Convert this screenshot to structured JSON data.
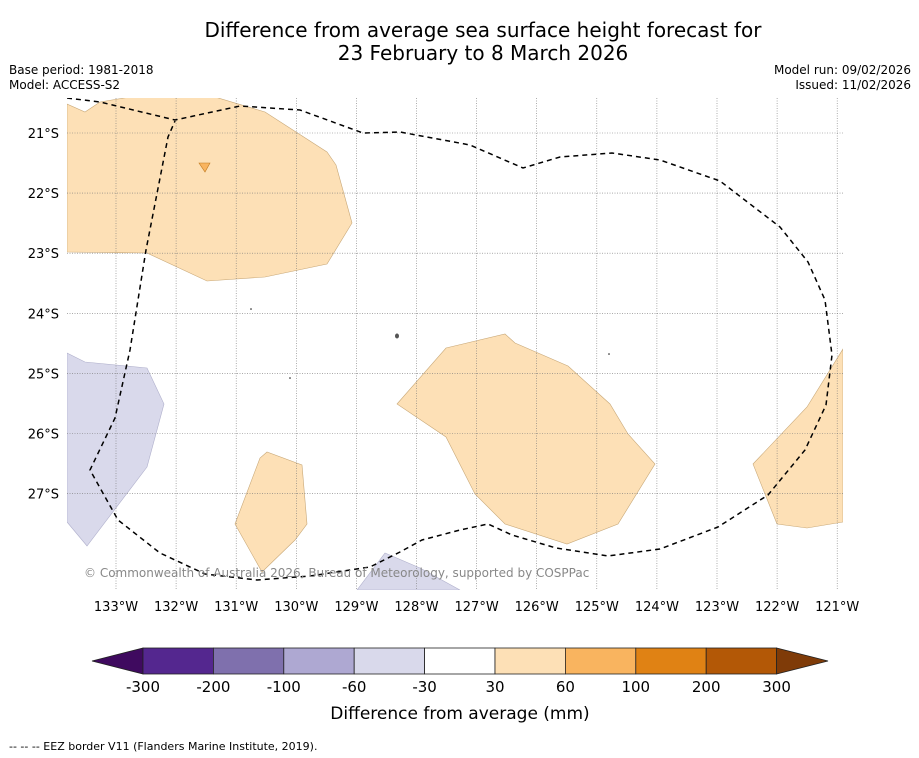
{
  "title": {
    "line1": "Difference from average sea surface height forecast for",
    "line2": "23 February to 8 March 2026"
  },
  "info_left": {
    "base_period": "Base period: 1981-2018",
    "model": "Model: ACCESS-S2"
  },
  "info_right": {
    "model_run": "Model run: 09/02/2026",
    "issued": "Issued: 11/02/2026"
  },
  "map": {
    "lat_labels": [
      "21°S",
      "22°S",
      "23°S",
      "24°S",
      "25°S",
      "26°S",
      "27°S"
    ],
    "lon_labels": [
      "133°W",
      "132°W",
      "131°W",
      "130°W",
      "129°W",
      "128°W",
      "127°W",
      "126°W",
      "125°W",
      "124°W",
      "123°W",
      "122°W",
      "121°W"
    ],
    "watermark": "© Commonwealth of Australia 2026, Bureau of Meteorology, supported by COSPPac",
    "colors": {
      "pos_30_60": "#fde0b6",
      "pos_60_100": "#f9b45f",
      "neg_30_60": "#d9d9eb",
      "eez_line": "#000000"
    }
  },
  "colorbar": {
    "label": "Difference from average (mm)",
    "ticks": [
      "-300",
      "-200",
      "-100",
      "-60",
      "-30",
      "30",
      "60",
      "100",
      "200",
      "300"
    ],
    "colors": [
      "#3f0a5f",
      "#54278f",
      "#7f70ad",
      "#aea8d2",
      "#d9d9eb",
      "#ffffff",
      "#fde0b6",
      "#f9b45f",
      "#e08214",
      "#b35806",
      "#7f3b08"
    ]
  },
  "footer": "--  --  -- EEZ border V11 (Flanders Marine Institute, 2019)."
}
